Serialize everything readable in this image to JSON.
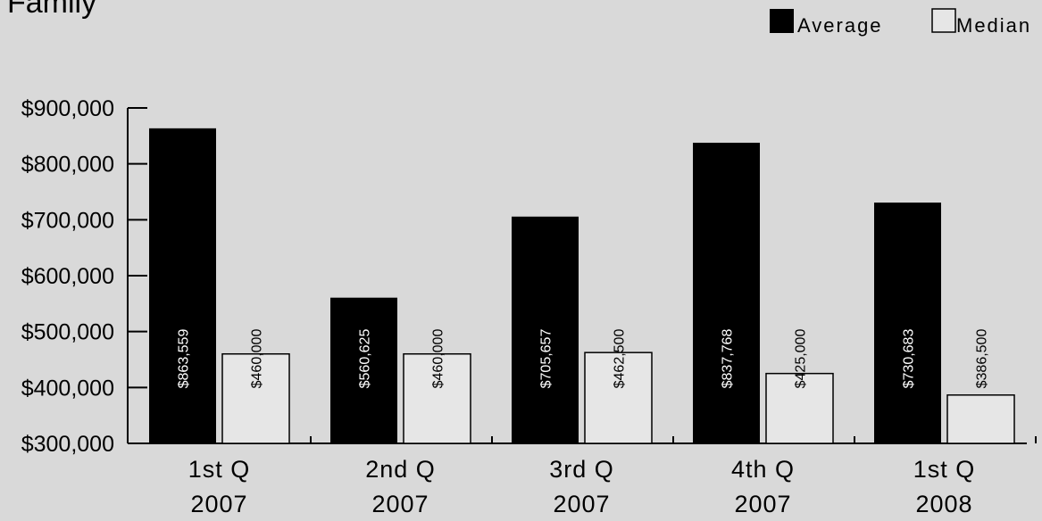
{
  "chart_data": {
    "type": "bar",
    "title": "Family",
    "categories": [
      [
        "1st Q",
        "2007"
      ],
      [
        "2nd Q",
        "2007"
      ],
      [
        "3rd Q",
        "2007"
      ],
      [
        "4th Q",
        "2007"
      ],
      [
        "1st Q",
        "2008"
      ]
    ],
    "series": [
      {
        "name": "Average",
        "color": "#000000",
        "values": [
          863559,
          560625,
          705657,
          837768,
          730683
        ],
        "labels": [
          "$863,559",
          "$560,625",
          "$705,657",
          "$837,768",
          "$730,683"
        ]
      },
      {
        "name": "Median",
        "color": "#e6e6e6",
        "values": [
          460000,
          460000,
          462500,
          425000,
          386500
        ],
        "labels": [
          "$460,000",
          "$460,000",
          "$462,500",
          "$425,000",
          "$386,500"
        ]
      }
    ],
    "y_ticks": [
      "$300,000",
      "$400,000",
      "$500,000",
      "$600,000",
      "$700,000",
      "$800,000",
      "$900,000"
    ],
    "y_tick_values": [
      300000,
      400000,
      500000,
      600000,
      700000,
      800000,
      900000
    ],
    "ylim": [
      300000,
      900000
    ],
    "grid": false,
    "legend_position": "top-right",
    "background": "#d9d9d9"
  }
}
